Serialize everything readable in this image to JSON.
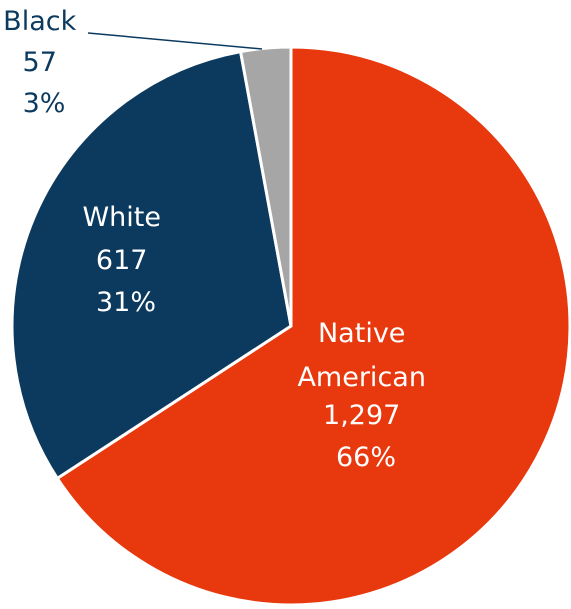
{
  "chart_data": {
    "type": "pie",
    "slices": [
      {
        "category": "Native American",
        "value": 1297,
        "value_label": "1,297",
        "percent_label": "66%",
        "color": "#e8380d",
        "label_lines": [
          "Native",
          "American"
        ]
      },
      {
        "category": "White",
        "value": 617,
        "value_label": "617",
        "percent_label": "31%",
        "color": "#0c3a5e",
        "label_lines": [
          "White"
        ]
      },
      {
        "category": "Black",
        "value": 57,
        "value_label": "57",
        "percent_label": "3%",
        "color": "#a6a6a6",
        "label_lines": [
          "Black"
        ]
      }
    ]
  }
}
